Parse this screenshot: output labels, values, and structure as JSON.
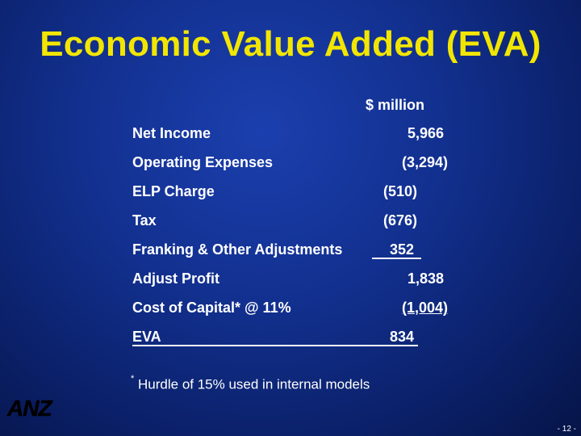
{
  "title": "Economic Value Added (EVA)",
  "unit": "$ million",
  "rows": [
    {
      "label": "Net Income",
      "value": "5,966"
    },
    {
      "label": "Operating Expenses",
      "value": "(3,294)"
    },
    {
      "label": "ELP Charge",
      "value": "(510)"
    },
    {
      "label": "Tax",
      "value": "(676)"
    },
    {
      "label": "Franking & Other Adjustments",
      "value": "352"
    },
    {
      "label": "Adjust Profit",
      "value": "1,838"
    },
    {
      "label": "Cost of Capital* @ 11%",
      "value": "(1,004)"
    },
    {
      "label": "EVA",
      "value": "834"
    }
  ],
  "footnote": {
    "marker": "*",
    "text": "Hurdle of 15% used in internal models"
  },
  "logo": {
    "text": "ANZ"
  },
  "page_number": "- 12 -"
}
